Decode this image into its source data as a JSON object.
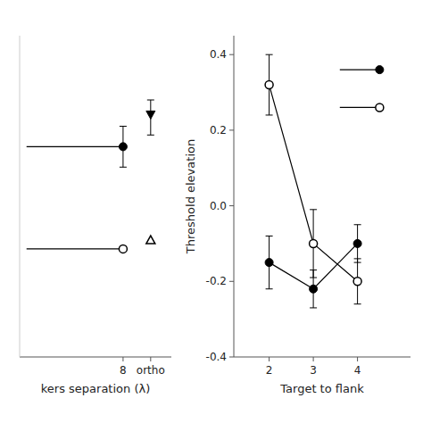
{
  "chart_data": [
    {
      "type": "line",
      "xlabel": "kers separation (λ)",
      "xlim": [
        0.5,
        11.5
      ],
      "ylim": [
        -0.5,
        0.6
      ],
      "xticks": [
        8,
        {
          "value": 10,
          "label": "ortho"
        }
      ],
      "tick_labels": "x",
      "series": [
        {
          "type": "line",
          "color": "black",
          "x": [
            1,
            8
          ],
          "values": [
            0.22,
            0.22
          ]
        },
        {
          "type": "line",
          "color": "black",
          "x": [
            1,
            8
          ],
          "values": [
            -0.13,
            -0.13
          ]
        },
        {
          "type": "scatter",
          "color": "black",
          "marker": "circle",
          "x": [
            8
          ],
          "values": [
            0.22
          ],
          "yerr": [
            0.07
          ]
        },
        {
          "type": "scatter",
          "color": "black",
          "marker": "triangle-down",
          "x": [
            10
          ],
          "values": [
            0.33
          ],
          "yerr_low": [
            0.07
          ],
          "yerr_high": [
            0.05
          ]
        },
        {
          "type": "scatter",
          "color": "black",
          "marker": "open-circle",
          "x": [
            8
          ],
          "values": [
            -0.13
          ]
        },
        {
          "type": "scatter",
          "color": "black",
          "marker": "open-triangle-up",
          "x": [
            10
          ],
          "values": [
            -0.1
          ]
        }
      ]
    },
    {
      "type": "line",
      "xlabel": "Target to flank",
      "ylabel": "Threshold elevation",
      "xlim": [
        1.2,
        5.2
      ],
      "ylim": [
        -0.4,
        0.45
      ],
      "xticks": [
        2,
        3,
        4
      ],
      "yticks": [
        -0.4,
        -0.2,
        {
          "value": 0,
          "label": "0.0"
        },
        0.2,
        0.4
      ],
      "series": [
        {
          "type": "line",
          "color": "black",
          "marker": "open-circle",
          "x": [
            2,
            3,
            4
          ],
          "values": [
            0.32,
            -0.1,
            -0.2
          ],
          "yerr": [
            0.08,
            0.09,
            0.06
          ]
        },
        {
          "type": "line",
          "color": "black",
          "marker": "circle",
          "x": [
            2,
            3,
            4
          ],
          "values": [
            -0.15,
            -0.22,
            -0.1
          ],
          "yerr": [
            0.07,
            0.05,
            0.05
          ]
        },
        {
          "type": "line",
          "color": "black",
          "x": [
            3.6,
            4.5
          ],
          "values": [
            0.36,
            0.36
          ]
        },
        {
          "type": "scatter",
          "color": "black",
          "marker": "circle",
          "x": [
            4.5
          ],
          "values": [
            0.36
          ]
        },
        {
          "type": "line",
          "color": "black",
          "x": [
            3.6,
            4.5
          ],
          "values": [
            0.26,
            0.26
          ]
        },
        {
          "type": "scatter",
          "color": "black",
          "marker": "open-circle",
          "x": [
            4.5
          ],
          "values": [
            0.26
          ]
        }
      ]
    }
  ]
}
